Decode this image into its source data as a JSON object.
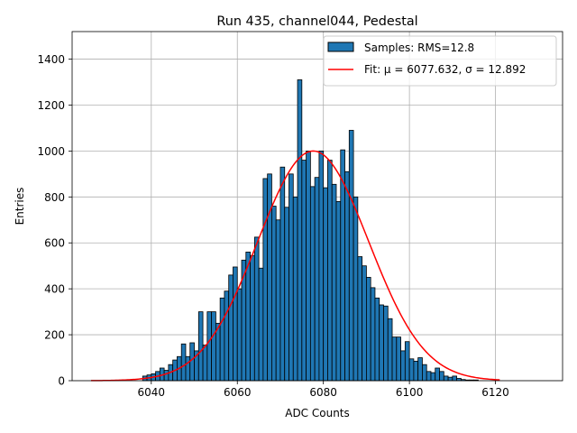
{
  "chart_data": {
    "type": "bar",
    "title": "Run 435, channel044, Pedestal",
    "xlabel": "ADC Counts",
    "ylabel": "Entries",
    "xlim": [
      6021.6,
      6135.6
    ],
    "ylim": [
      0,
      1520
    ],
    "xticks": [
      6040,
      6060,
      6080,
      6100,
      6120
    ],
    "yticks": [
      0,
      200,
      400,
      600,
      800,
      1000,
      1200,
      1400
    ],
    "grid": true,
    "legend_position": "top-right",
    "legend": [
      {
        "label": "Samples: RMS=12.8",
        "kind": "patch"
      },
      {
        "label": "Fit: μ = 6077.632, σ = 12.892",
        "kind": "line"
      }
    ],
    "colors": {
      "bar_fill": "#1f77b4",
      "bar_edge": "#000000",
      "fit_line": "#ff0000",
      "grid": "#b0b0b0"
    },
    "histogram": {
      "bin_start": 6026,
      "bin_width": 1,
      "counts": [
        0,
        0,
        0,
        0,
        0,
        0,
        0,
        0,
        0,
        0,
        0,
        0,
        20,
        25,
        30,
        40,
        55,
        45,
        70,
        90,
        105,
        160,
        105,
        165,
        130,
        300,
        155,
        300,
        300,
        250,
        360,
        390,
        460,
        495,
        400,
        525,
        560,
        545,
        625,
        490,
        880,
        900,
        760,
        700,
        930,
        755,
        900,
        800,
        1310,
        960,
        1000,
        845,
        885,
        1000,
        840,
        960,
        855,
        780,
        1005,
        910,
        1090,
        800,
        540,
        500,
        450,
        405,
        360,
        330,
        325,
        270,
        190,
        190,
        130,
        170,
        95,
        85,
        100,
        70,
        40,
        35,
        55,
        40,
        20,
        15,
        20,
        10,
        5,
        3,
        3,
        3,
        0,
        0,
        0,
        0,
        0,
        0,
        0,
        0,
        0,
        0,
        0,
        0,
        0,
        0,
        0
      ]
    },
    "fit": {
      "type": "gaussian",
      "mu": 6077.632,
      "sigma": 12.892,
      "amplitude": 1000,
      "x_range": [
        6026,
        6121
      ]
    }
  }
}
